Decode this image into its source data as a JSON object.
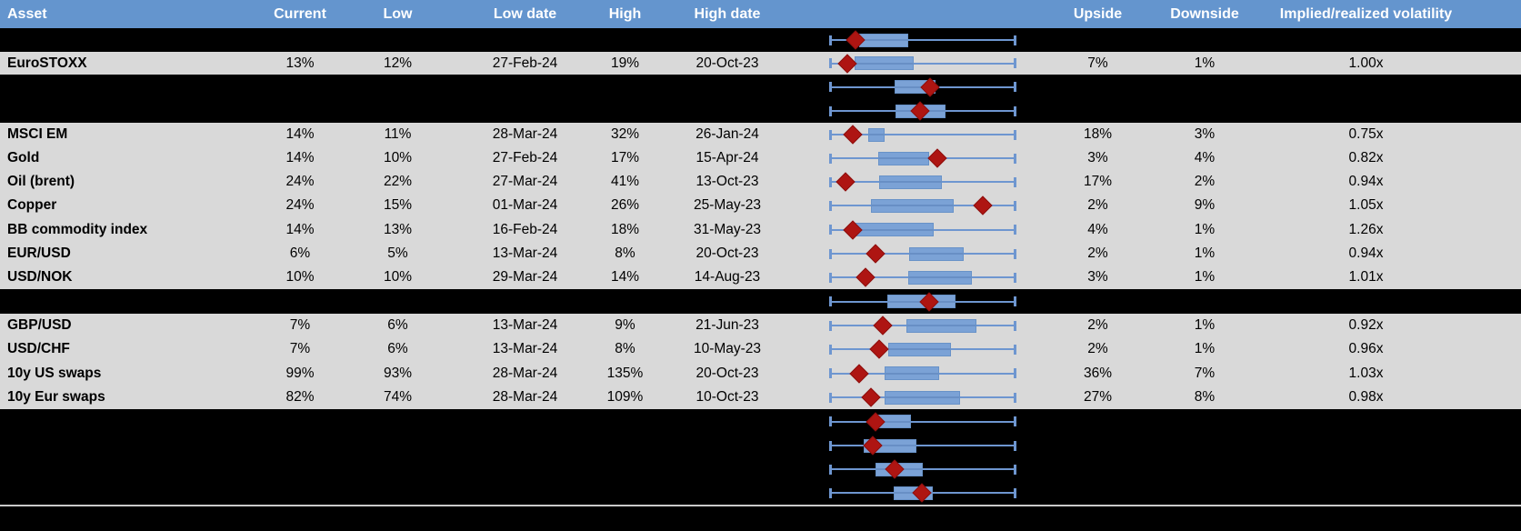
{
  "table": {
    "columns": [
      "Asset",
      "Current",
      "Low",
      "Low date",
      "High",
      "High date",
      "Upside",
      "Downside",
      "Implied/realized volatility"
    ],
    "rows": [
      {
        "id": "hidden-1",
        "hidden": true,
        "plot": {
          "box_low": 0.158,
          "box_high": 0.42,
          "marker": 0.137
        }
      },
      {
        "id": "eurostoxx",
        "hidden": false,
        "asset": "EuroSTOXX",
        "current": "13%",
        "low": "12%",
        "low_date": "27-Feb-24",
        "high": "19%",
        "high_date": "20-Oct-23",
        "upside": "7%",
        "downside": "1%",
        "implied_realized_vol": "1.00x",
        "plot": {
          "box_low": 0.134,
          "box_high": 0.452,
          "marker": 0.095
        }
      },
      {
        "id": "hidden-2",
        "hidden": true,
        "plot": {
          "box_low": 0.346,
          "box_high": 0.567,
          "marker": 0.537
        }
      },
      {
        "id": "hidden-3",
        "hidden": true,
        "plot": {
          "box_low": 0.354,
          "box_high": 0.624,
          "marker": 0.485
        }
      },
      {
        "id": "msci-em",
        "hidden": false,
        "asset": "MSCI EM",
        "current": "14%",
        "low": "11%",
        "low_date": "28-Mar-24",
        "high": "32%",
        "high_date": "26-Jan-24",
        "upside": "18%",
        "downside": "3%",
        "implied_realized_vol": "0.75x",
        "plot": {
          "box_low": 0.204,
          "box_high": 0.294,
          "marker": 0.121
        }
      },
      {
        "id": "gold",
        "hidden": false,
        "asset": "Gold",
        "current": "14%",
        "low": "10%",
        "low_date": "27-Feb-24",
        "high": "17%",
        "high_date": "15-Apr-24",
        "upside": "3%",
        "downside": "4%",
        "implied_realized_vol": "0.82x",
        "plot": {
          "box_low": 0.261,
          "box_high": 0.534,
          "marker": 0.578
        }
      },
      {
        "id": "oil-brent",
        "hidden": false,
        "asset": "Oil (brent)",
        "current": "24%",
        "low": "22%",
        "low_date": "27-Mar-24",
        "high": "41%",
        "high_date": "13-Oct-23",
        "upside": "17%",
        "downside": "2%",
        "implied_realized_vol": "0.94x",
        "plot": {
          "box_low": 0.265,
          "box_high": 0.605,
          "marker": 0.085
        }
      },
      {
        "id": "copper",
        "hidden": false,
        "asset": "Copper",
        "current": "24%",
        "low": "15%",
        "low_date": "01-Mar-24",
        "high": "26%",
        "high_date": "25-May-23",
        "upside": "2%",
        "downside": "9%",
        "implied_realized_vol": "1.05x",
        "plot": {
          "box_low": 0.221,
          "box_high": 0.665,
          "marker": 0.825
        }
      },
      {
        "id": "bb-commodity-index",
        "hidden": false,
        "asset": "BB commodity index",
        "current": "14%",
        "low": "13%",
        "low_date": "16-Feb-24",
        "high": "18%",
        "high_date": "31-May-23",
        "upside": "4%",
        "downside": "1%",
        "implied_realized_vol": "1.26x",
        "plot": {
          "box_low": 0.134,
          "box_high": 0.559,
          "marker": 0.121
        }
      },
      {
        "id": "eur-usd",
        "hidden": false,
        "asset": "EUR/USD",
        "current": "6%",
        "low": "5%",
        "low_date": "13-Mar-24",
        "high": "8%",
        "high_date": "20-Oct-23",
        "upside": "2%",
        "downside": "1%",
        "implied_realized_vol": "0.94x",
        "plot": {
          "box_low": 0.425,
          "box_high": 0.719,
          "marker": 0.243
        }
      },
      {
        "id": "usd-nok",
        "hidden": false,
        "asset": "USD/NOK",
        "current": "10%",
        "low": "10%",
        "low_date": "29-Mar-24",
        "high": "14%",
        "high_date": "14-Aug-23",
        "upside": "3%",
        "downside": "1%",
        "implied_realized_vol": "1.01x",
        "plot": {
          "box_low": 0.42,
          "box_high": 0.763,
          "marker": 0.191
        }
      },
      {
        "id": "hidden-4",
        "hidden": true,
        "plot": {
          "box_low": 0.309,
          "box_high": 0.678,
          "marker": 0.534
        }
      },
      {
        "id": "gbp-usd",
        "hidden": false,
        "asset": "GBP/USD",
        "current": "7%",
        "low": "6%",
        "low_date": "13-Mar-24",
        "high": "9%",
        "high_date": "21-Jun-23",
        "upside": "2%",
        "downside": "1%",
        "implied_realized_vol": "0.92x",
        "plot": {
          "box_low": 0.412,
          "box_high": 0.787,
          "marker": 0.284
        }
      },
      {
        "id": "usd-chf",
        "hidden": false,
        "asset": "USD/CHF",
        "current": "7%",
        "low": "6%",
        "low_date": "13-Mar-24",
        "high": "8%",
        "high_date": "10-May-23",
        "upside": "2%",
        "downside": "1%",
        "implied_realized_vol": "0.96x",
        "plot": {
          "box_low": 0.314,
          "box_high": 0.654,
          "marker": 0.265
        }
      },
      {
        "id": "10y-us-swaps",
        "hidden": false,
        "asset": "10y US swaps",
        "current": "99%",
        "low": "93%",
        "low_date": "28-Mar-24",
        "high": "135%",
        "high_date": "20-Oct-23",
        "upside": "36%",
        "downside": "7%",
        "implied_realized_vol": "1.03x",
        "plot": {
          "box_low": 0.294,
          "box_high": 0.586,
          "marker": 0.158
        }
      },
      {
        "id": "10y-eur-swaps",
        "hidden": false,
        "asset": "10y Eur swaps",
        "current": "82%",
        "low": "74%",
        "low_date": "28-Mar-24",
        "high": "109%",
        "high_date": "10-Oct-23",
        "upside": "27%",
        "downside": "8%",
        "implied_realized_vol": "0.98x",
        "plot": {
          "box_low": 0.294,
          "box_high": 0.702,
          "marker": 0.221
        }
      },
      {
        "id": "hidden-5",
        "hidden": true,
        "plot": {
          "box_low": 0.248,
          "box_high": 0.436,
          "marker": 0.243
        }
      },
      {
        "id": "hidden-6",
        "hidden": true,
        "plot": {
          "box_low": 0.18,
          "box_high": 0.464,
          "marker": 0.228
        }
      },
      {
        "id": "hidden-7",
        "hidden": true,
        "plot": {
          "box_low": 0.245,
          "box_high": 0.498,
          "marker": 0.35
        }
      },
      {
        "id": "hidden-8",
        "hidden": true,
        "plot": {
          "box_low": 0.343,
          "box_high": 0.555,
          "marker": 0.493
        }
      }
    ]
  },
  "colors": {
    "header_bg": "#6495CE",
    "header_text": "#FFFFFF",
    "row_gray": "#D9D9D9",
    "row_black": "#000000",
    "box_fill": "#7BA2D6",
    "whisker_line": "#6E96D0",
    "marker_red": "#AE1512"
  }
}
